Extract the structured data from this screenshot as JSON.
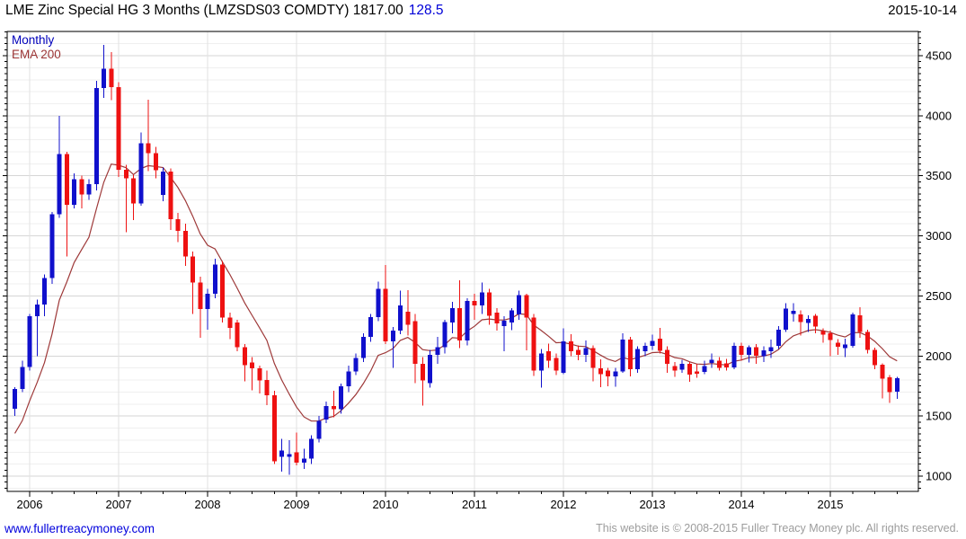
{
  "header": {
    "title": "LME Zinc Special HG 3 Months (LMZSDS03 COMDTY) 1817.00",
    "change": "128.5",
    "date": "2015-10-14"
  },
  "legend": {
    "timeframe": "Monthly",
    "overlay": "EMA 200"
  },
  "footer": {
    "site": "www.fullertreacymoney.com",
    "copyright": "This website is © 2008-2015 Fuller Treacy Money plc. All rights reserved."
  },
  "chart_data": {
    "type": "candlestick",
    "title": "LME Zinc Special HG 3 Months (LMZSDS03 COMDTY)",
    "last_price": 1817.0,
    "change": 128.5,
    "timeframe": "Monthly",
    "overlay": "EMA 200",
    "grid": true,
    "legend_position": "top-left",
    "y_axis_side": "right",
    "ylim": [
      873,
      4702
    ],
    "y_ticks": [
      1000,
      1500,
      2000,
      2500,
      3000,
      3500,
      4000,
      4500
    ],
    "y_minor_step": 100,
    "y_tick_minor_step": 50,
    "x_ticks": [
      2006,
      2007,
      2008,
      2009,
      2010,
      2011,
      2012,
      2013,
      2014,
      2015
    ],
    "start": {
      "year": 2005,
      "month": 11
    },
    "months": [
      [
        1560,
        1740,
        1500,
        1725
      ],
      [
        1725,
        1960,
        1700,
        1910
      ],
      [
        1910,
        2350,
        1880,
        2330
      ],
      [
        2330,
        2470,
        2000,
        2430
      ],
      [
        2430,
        2680,
        2330,
        2650
      ],
      [
        2650,
        3200,
        2600,
        3180
      ],
      [
        3180,
        4000,
        3150,
        3680
      ],
      [
        3680,
        3700,
        2830,
        3260
      ],
      [
        3260,
        3520,
        3230,
        3470
      ],
      [
        3470,
        3500,
        3230,
        3345
      ],
      [
        3345,
        3470,
        3300,
        3430
      ],
      [
        3430,
        4290,
        3380,
        4230
      ],
      [
        4230,
        4590,
        4150,
        4390
      ],
      [
        4390,
        4530,
        4130,
        4240
      ],
      [
        4240,
        4280,
        3490,
        3550
      ],
      [
        3550,
        3590,
        3030,
        3480
      ],
      [
        3480,
        3510,
        3130,
        3270
      ],
      [
        3270,
        3860,
        3250,
        3770
      ],
      [
        3770,
        4135,
        3540,
        3690
      ],
      [
        3690,
        3740,
        3480,
        3545
      ],
      [
        3340,
        3570,
        3290,
        3535
      ],
      [
        3535,
        3560,
        3050,
        3140
      ],
      [
        3140,
        3190,
        2950,
        3040
      ],
      [
        3040,
        3100,
        2750,
        2830
      ],
      [
        2830,
        2870,
        2350,
        2610
      ],
      [
        2610,
        2660,
        2150,
        2390
      ],
      [
        2390,
        2560,
        2220,
        2520
      ],
      [
        2520,
        2810,
        2480,
        2760
      ],
      [
        2760,
        2790,
        2280,
        2320
      ],
      [
        2320,
        2360,
        2140,
        2235
      ],
      [
        2280,
        2300,
        2040,
        2075
      ],
      [
        2075,
        2100,
        1790,
        1922
      ],
      [
        1947,
        1990,
        1715,
        1897
      ],
      [
        1897,
        1920,
        1690,
        1798
      ],
      [
        1800,
        1880,
        1590,
        1675
      ],
      [
        1675,
        1710,
        1100,
        1125
      ],
      [
        1162,
        1311,
        1037,
        1212
      ],
      [
        1160,
        1299,
        1012,
        1185
      ],
      [
        1200,
        1361,
        1090,
        1112
      ],
      [
        1112,
        1230,
        1060,
        1145
      ],
      [
        1145,
        1340,
        1100,
        1310
      ],
      [
        1311,
        1500,
        1280,
        1461
      ],
      [
        1473,
        1620,
        1440,
        1585
      ],
      [
        1583,
        1710,
        1490,
        1558
      ],
      [
        1558,
        1770,
        1520,
        1748
      ],
      [
        1748,
        1920,
        1700,
        1873
      ],
      [
        1873,
        2020,
        1840,
        1985
      ],
      [
        1985,
        2190,
        1950,
        2159
      ],
      [
        2159,
        2350,
        2120,
        2322
      ],
      [
        2322,
        2621,
        2290,
        2560
      ],
      [
        2560,
        2758,
        2100,
        2122
      ],
      [
        2122,
        2240,
        1900,
        2210
      ],
      [
        2210,
        2546,
        2180,
        2420
      ],
      [
        2370,
        2550,
        2170,
        2260
      ],
      [
        2290,
        2350,
        1775,
        1935
      ],
      [
        1935,
        1990,
        1586,
        1798
      ],
      [
        1773,
        2050,
        1736,
        2010
      ],
      [
        2010,
        2160,
        1935,
        2072
      ],
      [
        2072,
        2300,
        2020,
        2284
      ],
      [
        2280,
        2450,
        2190,
        2400
      ],
      [
        2400,
        2630,
        2065,
        2130
      ],
      [
        2130,
        2480,
        2090,
        2460
      ],
      [
        2460,
        2520,
        2300,
        2420
      ],
      [
        2420,
        2610,
        2350,
        2530
      ],
      [
        2530,
        2560,
        2260,
        2335
      ],
      [
        2360,
        2400,
        2210,
        2270
      ],
      [
        2250,
        2330,
        2040,
        2295
      ],
      [
        2280,
        2400,
        2215,
        2380
      ],
      [
        2346,
        2546,
        2300,
        2508
      ],
      [
        2508,
        2520,
        2047,
        2320
      ],
      [
        2320,
        2350,
        1835,
        1880
      ],
      [
        1880,
        2060,
        1735,
        2022
      ],
      [
        2040,
        2105,
        1900,
        1960
      ],
      [
        1985,
        2020,
        1840,
        1880
      ],
      [
        1860,
        2230,
        1850,
        2122
      ],
      [
        2122,
        2180,
        2000,
        2040
      ],
      [
        2050,
        2090,
        1965,
        2010
      ],
      [
        2010,
        2130,
        1950,
        2065
      ],
      [
        2065,
        2090,
        1790,
        1900
      ],
      [
        1897,
        1972,
        1740,
        1850
      ],
      [
        1880,
        1900,
        1748,
        1830
      ],
      [
        1830,
        1900,
        1745,
        1870
      ],
      [
        1870,
        2190,
        1860,
        2135
      ],
      [
        2135,
        2160,
        1830,
        1890
      ],
      [
        1890,
        2080,
        1860,
        2060
      ],
      [
        2040,
        2110,
        2000,
        2085
      ],
      [
        2085,
        2177,
        2050,
        2125
      ],
      [
        2145,
        2235,
        2020,
        2045
      ],
      [
        2050,
        2080,
        1860,
        1935
      ],
      [
        1918,
        1950,
        1828,
        1878
      ],
      [
        1885,
        1970,
        1860,
        1935
      ],
      [
        1935,
        1950,
        1785,
        1845
      ],
      [
        1873,
        1935,
        1818,
        1853
      ],
      [
        1868,
        1960,
        1850,
        1918
      ],
      [
        1942,
        2022,
        1900,
        1967
      ],
      [
        1960,
        1990,
        1880,
        1900
      ],
      [
        1940,
        1975,
        1880,
        1905
      ],
      [
        1905,
        2110,
        1890,
        2085
      ],
      [
        2085,
        2110,
        1960,
        2010
      ],
      [
        2010,
        2090,
        1947,
        2075
      ],
      [
        2075,
        2100,
        1935,
        2002
      ],
      [
        1997,
        2080,
        1950,
        2047
      ],
      [
        2040,
        2135,
        1985,
        2075
      ],
      [
        2084,
        2250,
        2060,
        2221
      ],
      [
        2221,
        2440,
        2200,
        2396
      ],
      [
        2350,
        2440,
        2285,
        2376
      ],
      [
        2346,
        2380,
        2172,
        2284
      ],
      [
        2276,
        2340,
        2200,
        2309
      ],
      [
        2334,
        2350,
        2190,
        2246
      ],
      [
        2209,
        2230,
        2109,
        2177
      ],
      [
        2191,
        2210,
        1997,
        2134
      ],
      [
        2109,
        2140,
        2010,
        2077
      ],
      [
        2065,
        2145,
        1990,
        2095
      ],
      [
        2084,
        2360,
        2070,
        2346
      ],
      [
        2340,
        2405,
        2150,
        2200
      ],
      [
        2200,
        2220,
        2020,
        2050
      ],
      [
        2050,
        2070,
        1890,
        1925
      ],
      [
        1927,
        1940,
        1648,
        1810
      ],
      [
        1822,
        1840,
        1610,
        1698
      ],
      [
        1703,
        1825,
        1645,
        1817
      ]
    ],
    "ema": {
      "alpha": 0.19,
      "seed": 1270,
      "color": "#9e3939"
    },
    "colors": {
      "up": "#1010cc",
      "down": "#ee1111",
      "grid_major": "#d6d6d6",
      "grid_minor": "#efefef",
      "grid_year": "#e2e2e2",
      "axis": "#000000",
      "label": "#000000",
      "title_change": "#0000d8",
      "legend_timeframe": "#0000bb",
      "legend_overlay": "#9b3434"
    }
  }
}
